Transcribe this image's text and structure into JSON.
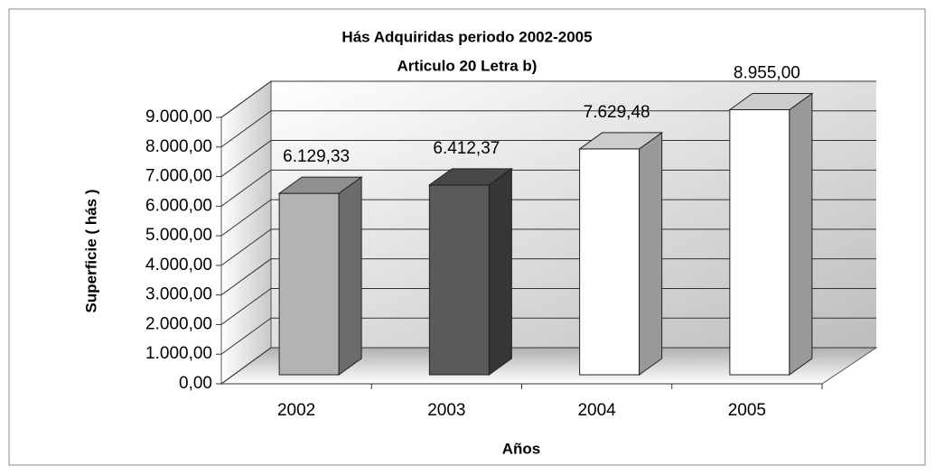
{
  "chart_data": {
    "type": "bar3d",
    "title": [
      "Hás Adquiridas periodo 2002-2005",
      "Articulo 20 Letra b)"
    ],
    "ylabel": "Superficie ( hás )",
    "xlabel": "Años",
    "categories": [
      "2002",
      "2003",
      "2004",
      "2005"
    ],
    "values": [
      6129.33,
      6412.37,
      7629.48,
      8955
    ],
    "value_labels": [
      "6.129,33",
      "6.412,37",
      "7.629,48",
      "8.955,00"
    ],
    "colors": [
      "#b3b3b3",
      "#5a5a5a",
      "#ffffff",
      "#ffffff"
    ],
    "ylim": [
      0,
      9000
    ],
    "yticks": [
      {
        "value": 0,
        "label": "0,00"
      },
      {
        "value": 1000,
        "label": "1.000,00"
      },
      {
        "value": 2000,
        "label": "2.000,00"
      },
      {
        "value": 3000,
        "label": "3.000,00"
      },
      {
        "value": 4000,
        "label": "4.000,00"
      },
      {
        "value": 5000,
        "label": "5.000,00"
      },
      {
        "value": 6000,
        "label": "6.000,00"
      },
      {
        "value": 7000,
        "label": "7.000,00"
      },
      {
        "value": 8000,
        "label": "8.000,00"
      },
      {
        "value": 9000,
        "label": "9.000,00"
      }
    ],
    "grid": true
  }
}
